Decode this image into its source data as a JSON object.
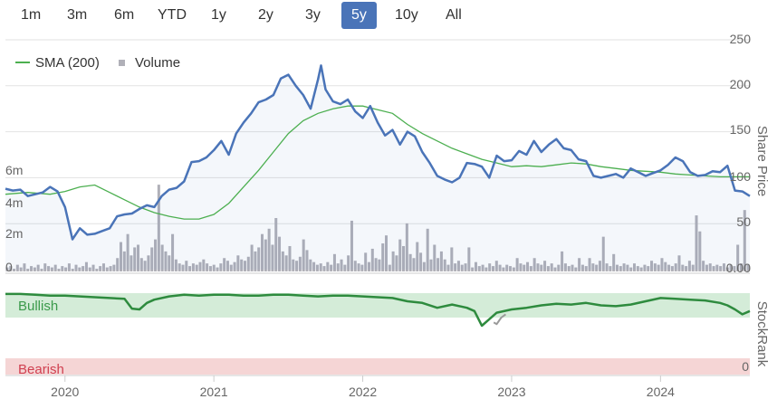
{
  "range_selector": {
    "buttons": [
      "1m",
      "3m",
      "6m",
      "YTD",
      "1y",
      "2y",
      "3y",
      "5y",
      "10y",
      "All"
    ],
    "active": "5y"
  },
  "chart_data": [
    {
      "type": "line",
      "name": "price-chart",
      "legend": [
        {
          "label": "SMA (200)",
          "color": "#4caf50",
          "marker": "line"
        },
        {
          "label": "Volume",
          "color": "#b0b0b8",
          "marker": "square"
        }
      ],
      "ylabel_right": "Share Price",
      "y_right_ticks": [
        "250",
        "200",
        "150",
        "100",
        "50",
        "0.00"
      ],
      "y_right_range": [
        0,
        250
      ],
      "y_left_ticks": [
        "6m",
        "4m",
        "2m",
        "0"
      ],
      "y_left_range": [
        0,
        8
      ],
      "x_ticks": [
        "2020",
        "2021",
        "2022",
        "2023",
        "2024"
      ],
      "x_range": [
        2019.6,
        2024.6
      ],
      "series": [
        {
          "name": "Share Price",
          "color": "#4a74b8",
          "x": [
            2019.6,
            2019.65,
            2019.7,
            2019.75,
            2019.8,
            2019.85,
            2019.9,
            2019.95,
            2020.0,
            2020.05,
            2020.1,
            2020.15,
            2020.2,
            2020.25,
            2020.3,
            2020.35,
            2020.4,
            2020.45,
            2020.5,
            2020.55,
            2020.6,
            2020.65,
            2020.7,
            2020.75,
            2020.8,
            2020.85,
            2020.9,
            2020.95,
            2021.0,
            2021.05,
            2021.1,
            2021.15,
            2021.2,
            2021.25,
            2021.3,
            2021.35,
            2021.4,
            2021.45,
            2021.5,
            2021.55,
            2021.6,
            2021.65,
            2021.7,
            2021.72,
            2021.75,
            2021.8,
            2021.85,
            2021.9,
            2021.95,
            2022.0,
            2022.05,
            2022.1,
            2022.15,
            2022.2,
            2022.25,
            2022.3,
            2022.35,
            2022.4,
            2022.45,
            2022.5,
            2022.55,
            2022.6,
            2022.65,
            2022.7,
            2022.75,
            2022.8,
            2022.85,
            2022.9,
            2022.95,
            2023.0,
            2023.05,
            2023.1,
            2023.15,
            2023.2,
            2023.25,
            2023.3,
            2023.35,
            2023.4,
            2023.45,
            2023.5,
            2023.55,
            2023.6,
            2023.65,
            2023.7,
            2023.75,
            2023.8,
            2023.85,
            2023.9,
            2023.95,
            2024.0,
            2024.05,
            2024.1,
            2024.15,
            2024.2,
            2024.25,
            2024.3,
            2024.35,
            2024.4,
            2024.45,
            2024.5,
            2024.55,
            2024.6
          ],
          "y": [
            88,
            86,
            87,
            80,
            82,
            84,
            90,
            85,
            68,
            33,
            45,
            38,
            39,
            42,
            45,
            58,
            60,
            61,
            66,
            70,
            68,
            80,
            87,
            89,
            96,
            117,
            118,
            122,
            130,
            140,
            125,
            148,
            160,
            170,
            182,
            185,
            190,
            208,
            212,
            200,
            190,
            175,
            207,
            222,
            196,
            183,
            180,
            185,
            172,
            165,
            178,
            160,
            146,
            152,
            136,
            150,
            145,
            128,
            116,
            102,
            98,
            95,
            100,
            116,
            115,
            112,
            100,
            124,
            118,
            119,
            129,
            125,
            140,
            128,
            136,
            142,
            132,
            130,
            120,
            118,
            102,
            100,
            102,
            104,
            100,
            110,
            106,
            102,
            105,
            108,
            114,
            122,
            118,
            106,
            102,
            103,
            107,
            106,
            113,
            86,
            85,
            80
          ]
        },
        {
          "name": "SMA (200)",
          "color": "#4caf50",
          "x": [
            2019.6,
            2019.75,
            2019.9,
            2020.0,
            2020.1,
            2020.2,
            2020.3,
            2020.4,
            2020.5,
            2020.6,
            2020.7,
            2020.8,
            2020.9,
            2021.0,
            2021.1,
            2021.2,
            2021.3,
            2021.4,
            2021.5,
            2021.6,
            2021.7,
            2021.8,
            2021.9,
            2022.0,
            2022.05,
            2022.1,
            2022.2,
            2022.3,
            2022.4,
            2022.5,
            2022.6,
            2022.7,
            2022.8,
            2022.9,
            2023.0,
            2023.1,
            2023.2,
            2023.3,
            2023.4,
            2023.5,
            2023.6,
            2023.7,
            2023.8,
            2023.9,
            2024.0,
            2024.1,
            2024.2,
            2024.3,
            2024.4,
            2024.5,
            2024.6
          ],
          "y": [
            82,
            84,
            82,
            85,
            90,
            92,
            84,
            76,
            68,
            62,
            58,
            55,
            55,
            60,
            72,
            90,
            108,
            128,
            148,
            162,
            170,
            175,
            178,
            178,
            176,
            174,
            170,
            158,
            148,
            140,
            132,
            126,
            120,
            116,
            112,
            113,
            112,
            114,
            116,
            115,
            112,
            110,
            108,
            107,
            106,
            104,
            103,
            102,
            101,
            101,
            101
          ]
        }
      ],
      "volume": {
        "name": "Volume",
        "color": "#b0b0b8",
        "values_m": [
          0.3,
          0.4,
          0.2,
          0.5,
          0.3,
          0.6,
          0.2,
          0.4,
          0.3,
          0.5,
          0.2,
          0.6,
          0.4,
          0.3,
          0.5,
          0.2,
          0.4,
          0.3,
          0.6,
          0.2,
          0.5,
          0.3,
          0.4,
          0.7,
          0.3,
          0.5,
          0.2,
          0.4,
          0.6,
          0.3,
          0.4,
          0.5,
          1.0,
          2.2,
          1.5,
          2.8,
          1.2,
          1.8,
          2.0,
          1.0,
          0.8,
          1.2,
          1.8,
          2.4,
          6.5,
          2.0,
          1.5,
          1.2,
          2.8,
          0.9,
          0.6,
          0.5,
          0.8,
          0.4,
          0.6,
          0.5,
          0.7,
          0.9,
          0.6,
          0.4,
          0.5,
          0.3,
          0.6,
          1.0,
          0.8,
          0.5,
          0.7,
          1.2,
          0.9,
          0.8,
          1.1,
          2.0,
          1.5,
          1.8,
          2.8,
          2.4,
          3.2,
          2.0,
          4.0,
          2.6,
          1.5,
          1.2,
          1.9,
          0.9,
          0.8,
          1.1,
          2.4,
          1.6,
          0.9,
          0.7,
          0.5,
          0.6,
          0.4,
          0.7,
          0.5,
          1.3,
          0.6,
          0.9,
          0.5,
          1.2,
          3.8,
          0.8,
          0.6,
          0.5,
          1.4,
          0.7,
          1.7,
          1.0,
          0.9,
          2.1,
          2.7,
          0.5,
          1.5,
          1.2,
          2.4,
          1.9,
          3.6,
          1.3,
          1.0,
          2.2,
          1.4,
          0.7,
          3.2,
          0.9,
          2.0,
          1.0,
          1.5,
          0.9,
          0.5,
          1.8,
          0.6,
          0.8,
          0.5,
          0.6,
          1.8,
          0.3,
          0.7,
          0.4,
          0.5,
          0.3,
          0.6,
          0.4,
          0.8,
          0.5,
          0.3,
          0.5,
          0.4,
          0.3,
          1.0,
          0.6,
          0.5,
          0.7,
          0.4,
          1.0,
          0.6,
          0.5,
          0.8,
          0.4,
          0.6,
          0.3,
          0.5,
          1.5,
          0.6,
          0.4,
          0.5,
          0.3,
          1.0,
          0.5,
          0.4,
          1.0,
          0.6,
          0.5,
          0.8,
          2.6,
          0.6,
          0.4,
          1.3,
          0.5,
          0.4,
          0.6,
          0.5,
          0.3,
          0.6,
          0.4,
          0.3,
          0.5,
          0.4,
          0.8,
          0.6,
          0.5,
          1.0,
          0.7,
          0.5,
          0.4,
          0.6,
          1.2,
          0.5,
          0.4,
          0.8,
          0.5,
          4.2,
          3.0,
          0.8,
          0.5,
          0.6,
          0.4,
          0.5,
          0.4,
          0.6,
          0.3,
          0.5,
          0.4,
          2.0,
          0.6,
          4.6,
          0.5
        ]
      }
    },
    {
      "type": "area",
      "name": "stockrank-chart",
      "ylabel_right": "StockRank",
      "y_right_ticks": [
        "0"
      ],
      "y_range": [
        0,
        100
      ],
      "bands": [
        {
          "label": "Bullish",
          "color": "#d4ecd8",
          "text_color": "#3a9a4a",
          "range": [
            70,
            100
          ]
        },
        {
          "label": "Bearish",
          "color": "#f5d5d5",
          "text_color": "#d04050",
          "range": [
            0,
            20
          ]
        }
      ],
      "series": [
        {
          "name": "StockRank",
          "color": "#2e8b3e",
          "x": [
            2019.6,
            2019.7,
            2019.8,
            2019.9,
            2020.0,
            2020.1,
            2020.2,
            2020.3,
            2020.4,
            2020.45,
            2020.5,
            2020.55,
            2020.6,
            2020.7,
            2020.8,
            2020.9,
            2021.0,
            2021.1,
            2021.2,
            2021.3,
            2021.4,
            2021.5,
            2021.6,
            2021.7,
            2021.8,
            2021.9,
            2022.0,
            2022.1,
            2022.2,
            2022.3,
            2022.4,
            2022.5,
            2022.6,
            2022.7,
            2022.75,
            2022.8,
            2022.85,
            2022.9,
            2023.0,
            2023.1,
            2023.2,
            2023.3,
            2023.4,
            2023.5,
            2023.6,
            2023.7,
            2023.8,
            2023.9,
            2024.0,
            2024.1,
            2024.2,
            2024.3,
            2024.4,
            2024.45,
            2024.5,
            2024.55,
            2024.6
          ],
          "y": [
            99,
            99,
            98,
            97,
            97,
            96,
            95,
            94,
            93,
            81,
            80,
            88,
            92,
            96,
            98,
            97,
            98,
            98,
            97,
            97,
            98,
            98,
            97,
            96,
            97,
            97,
            96,
            95,
            94,
            90,
            88,
            82,
            86,
            82,
            78,
            60,
            68,
            76,
            80,
            82,
            85,
            87,
            86,
            88,
            85,
            84,
            86,
            90,
            94,
            93,
            92,
            91,
            88,
            85,
            80,
            74,
            78
          ]
        },
        {
          "name": "StockRank (neutral)",
          "color": "#999999",
          "x": [
            2022.88,
            2022.9,
            2022.93,
            2022.96
          ],
          "y": [
            64,
            62,
            70,
            74
          ]
        }
      ],
      "x_ticks": [
        "2020",
        "2021",
        "2022",
        "2023",
        "2024"
      ]
    }
  ]
}
